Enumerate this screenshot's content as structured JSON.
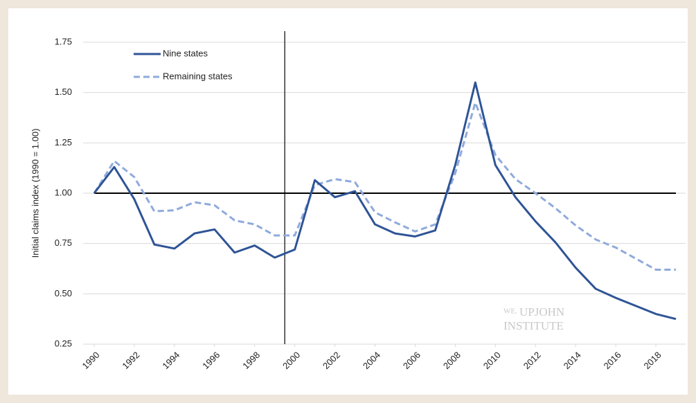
{
  "chart_data": {
    "type": "line",
    "y_axis_label": "Initial claims index (1990 = 1.00)",
    "x": [
      1990,
      1991,
      1992,
      1993,
      1994,
      1995,
      1996,
      1997,
      1998,
      1999,
      2000,
      2001,
      2002,
      2003,
      2004,
      2005,
      2006,
      2007,
      2008,
      2009,
      2010,
      2011,
      2012,
      2013,
      2014,
      2015,
      2016,
      2017,
      2018,
      2019
    ],
    "series": [
      {
        "name": "Nine states",
        "color": "#2f5496",
        "dash": false,
        "values": [
          1.0,
          1.13,
          0.97,
          0.745,
          0.725,
          0.8,
          0.82,
          0.705,
          0.74,
          0.68,
          0.72,
          1.065,
          0.98,
          1.01,
          0.845,
          0.8,
          0.785,
          0.815,
          1.14,
          1.55,
          1.14,
          0.98,
          0.86,
          0.755,
          0.63,
          0.525,
          0.48,
          0.44,
          0.4,
          0.375
        ]
      },
      {
        "name": "Remaining states",
        "color": "#8faadc",
        "dash": true,
        "values": [
          1.0,
          1.16,
          1.08,
          0.91,
          0.915,
          0.955,
          0.94,
          0.865,
          0.845,
          0.79,
          0.79,
          1.04,
          1.07,
          1.055,
          0.905,
          0.855,
          0.81,
          0.845,
          1.1,
          1.45,
          1.19,
          1.07,
          1.0,
          0.925,
          0.84,
          0.77,
          0.73,
          0.675,
          0.62,
          0.62
        ]
      }
    ],
    "xlim": [
      1990,
      2019
    ],
    "xticks": [
      1990,
      1992,
      1994,
      1996,
      1998,
      2000,
      2002,
      2004,
      2006,
      2008,
      2010,
      2012,
      2014,
      2016,
      2018
    ],
    "ylim": [
      0.25,
      1.75
    ],
    "yticks": [
      0.25,
      {
        "value": 0.5,
        "label": "0.50"
      },
      0.75,
      {
        "value": 1,
        "label": "1.00"
      },
      1.25,
      {
        "value": 1.5,
        "label": "1.50"
      },
      1.75
    ],
    "grid": true,
    "reference_lines": {
      "x": 1999.5,
      "y": 1
    },
    "legend_position": "upper-left",
    "watermark": {
      "prefix": "WE.",
      "line1": "UPJOHN",
      "line2": "INSTITUTE"
    }
  }
}
